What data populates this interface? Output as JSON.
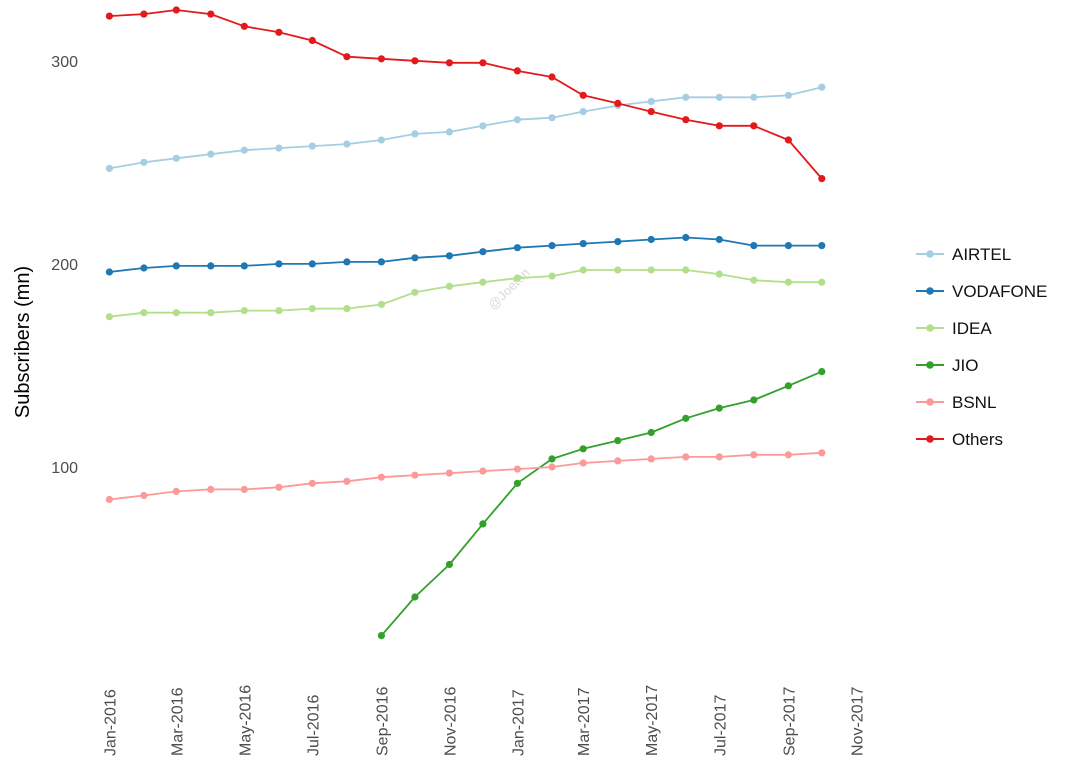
{
  "chart_data": {
    "type": "line",
    "title": "",
    "xlabel": "",
    "ylabel": "Subscribers (mn)",
    "x": [
      "2016-01",
      "2016-02",
      "2016-03",
      "2016-04",
      "2016-05",
      "2016-06",
      "2016-07",
      "2016-08",
      "2016-09",
      "2016-10",
      "2016-11",
      "2016-12",
      "2017-01",
      "2017-02",
      "2017-03",
      "2017-04",
      "2017-05",
      "2017-06",
      "2017-07",
      "2017-08",
      "2017-09",
      "2017-10"
    ],
    "xlim": [
      "2015-12-20",
      "2017-11-15"
    ],
    "ylim": [
      5,
      325
    ],
    "x_ticks": [
      "2016-01",
      "2016-03",
      "2016-05",
      "2016-07",
      "2016-09",
      "2016-11",
      "2017-01",
      "2017-03",
      "2017-05",
      "2017-07",
      "2017-09",
      "2017-11"
    ],
    "x_tick_labels": [
      "Jan-2016",
      "Mar-2016",
      "May-2016",
      "Jul-2016",
      "Sep-2016",
      "Nov-2016",
      "Jan-2017",
      "Mar-2017",
      "May-2017",
      "Jul-2017",
      "Sep-2017",
      "Nov-2017"
    ],
    "y_ticks": [
      100,
      200,
      300
    ],
    "y_tick_labels": [
      "100",
      "200",
      "300"
    ],
    "grid": false,
    "legend": "right",
    "series": [
      {
        "name": "AIRTEL",
        "color": "#a6cee3",
        "values": [
          247,
          250,
          252,
          254,
          256,
          257,
          258,
          259,
          261,
          264,
          265,
          268,
          271,
          272,
          275,
          278,
          280,
          282,
          282,
          282,
          283,
          287
        ]
      },
      {
        "name": "VODAFONE",
        "color": "#1f78b4",
        "values": [
          196,
          198,
          199,
          199,
          199,
          200,
          200,
          201,
          201,
          203,
          204,
          206,
          208,
          209,
          210,
          211,
          212,
          213,
          212,
          209,
          209,
          209
        ]
      },
      {
        "name": "IDEA",
        "color": "#b2df8a",
        "values": [
          174,
          176,
          176,
          176,
          177,
          177,
          178,
          178,
          180,
          186,
          189,
          191,
          193,
          194,
          197,
          197,
          197,
          197,
          195,
          192,
          191,
          191
        ]
      },
      {
        "name": "JIO",
        "color": "#33a02c",
        "values": [
          null,
          null,
          null,
          null,
          null,
          null,
          null,
          null,
          17,
          36,
          52,
          72,
          92,
          104,
          109,
          113,
          117,
          124,
          129,
          133,
          140,
          147
        ]
      },
      {
        "name": "BSNL",
        "color": "#fb9a99",
        "values": [
          84,
          86,
          88,
          89,
          89,
          90,
          92,
          93,
          95,
          96,
          97,
          98,
          99,
          100,
          102,
          103,
          104,
          105,
          105,
          106,
          106,
          107
        ]
      },
      {
        "name": "Others",
        "color": "#e31a1c",
        "values": [
          322,
          323,
          325,
          323,
          317,
          314,
          310,
          302,
          301,
          300,
          299,
          299,
          295,
          292,
          283,
          279,
          275,
          271,
          268,
          268,
          261,
          242
        ]
      }
    ],
    "watermark": "@Joeton"
  }
}
